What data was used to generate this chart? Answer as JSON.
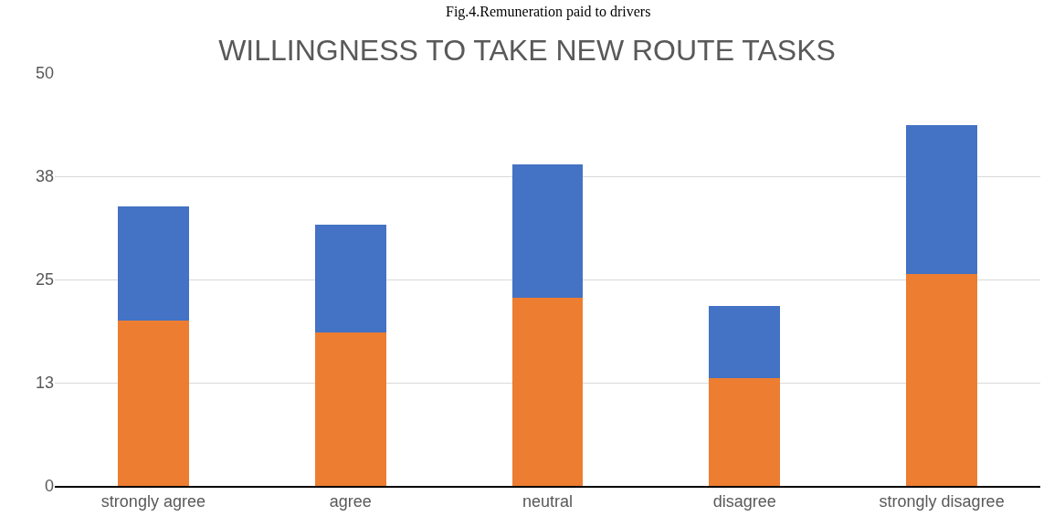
{
  "chart_data": {
    "type": "bar",
    "title": "WILLINGNESS TO TAKE NEW ROUTE TASKS",
    "annotations": [
      "Fig.4.Remuneration paid to drivers"
    ],
    "categories": [
      "strongly agree",
      "agree",
      "neutral",
      "disagree",
      "strongly disagree"
    ],
    "stacked": true,
    "series": [
      {
        "color": "#ed7d31",
        "values": [
          20,
          18.6,
          22.8,
          13,
          25.7
        ]
      },
      {
        "color": "#4472c4",
        "values": [
          13.9,
          13,
          16.1,
          8.8,
          18
        ]
      }
    ],
    "ylim": [
      0,
      50
    ],
    "yticks": [
      0,
      {
        "value": 12.5,
        "label": "13"
      },
      25,
      {
        "value": 37.5,
        "label": "38"
      },
      50
    ],
    "grid": "y"
  }
}
